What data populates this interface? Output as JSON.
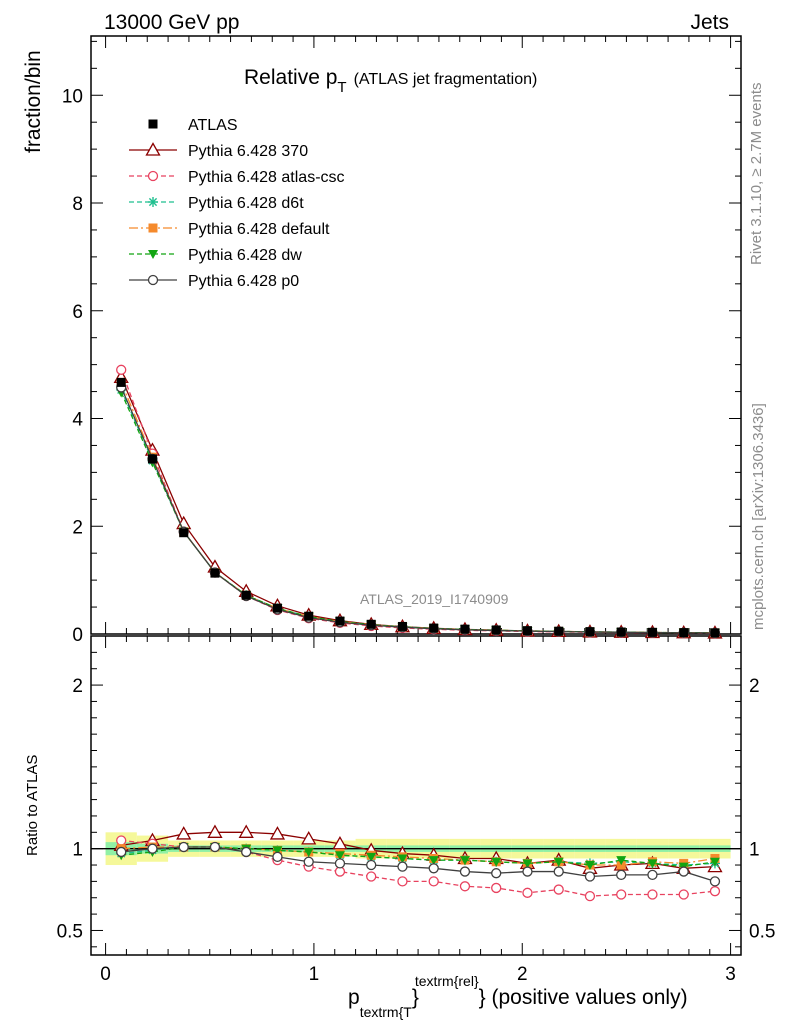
{
  "header": {
    "left": "13000 GeV pp",
    "right": "Jets"
  },
  "side_labels": {
    "rivet": "Rivet 3.1.10, ≥ 2.7M events",
    "mcplots": "mcplots.cern.ch [arXiv:1306.3436]"
  },
  "chart_data": {
    "type": "line",
    "title_main": "Relative p",
    "title_sub": "T",
    "title_rest": "(ATLAS jet fragmentation)",
    "watermark": "ATLAS_2019_I1740909",
    "ylabel_top": "fraction/bin",
    "ylabel_ratio": "Ratio to ATLAS",
    "xlabel_p": "p",
    "xlabel_sub": "textrm{T",
    "xlabel_brace": "}",
    "xlabel_sup": "textrm{rel}",
    "xlabel_tail": "} (positive values only)",
    "ylim_top": [
      0,
      11.1
    ],
    "ylim_ratio": [
      0.35,
      2.3
    ],
    "xlim": [
      -0.07,
      3.05
    ],
    "yticks_top": [
      "0",
      "2",
      "4",
      "6",
      "8",
      "10"
    ],
    "yticks_ratio": [
      "0.5",
      "1",
      "2"
    ],
    "xticks": [
      "0",
      "1",
      "2",
      "3"
    ],
    "x": [
      0.075,
      0.225,
      0.375,
      0.525,
      0.675,
      0.825,
      0.975,
      1.125,
      1.275,
      1.425,
      1.575,
      1.725,
      1.875,
      2.025,
      2.175,
      2.325,
      2.475,
      2.625,
      2.775,
      2.925
    ],
    "data_values": [
      4.67,
      3.25,
      1.88,
      1.13,
      0.72,
      0.48,
      0.33,
      0.24,
      0.18,
      0.14,
      0.11,
      0.09,
      0.075,
      0.062,
      0.052,
      0.044,
      0.037,
      0.031,
      0.026,
      0.022
    ],
    "band_outer": [
      0.1,
      0.08,
      0.05,
      0.05,
      0.05,
      0.05,
      0.05,
      0.05,
      0.06,
      0.06,
      0.06,
      0.06,
      0.06,
      0.06,
      0.06,
      0.06,
      0.06,
      0.06,
      0.06,
      0.06
    ],
    "band_inner": [
      0.04,
      0.03,
      0.02,
      0.02,
      0.02,
      0.02,
      0.02,
      0.02,
      0.02,
      0.02,
      0.02,
      0.02,
      0.02,
      0.02,
      0.02,
      0.02,
      0.02,
      0.02,
      0.02,
      0.02
    ],
    "data_series": {
      "name": "ATLAS",
      "color": "#000000",
      "marker": "square"
    },
    "series": [
      {
        "name": "Pythia 6.428 370",
        "color": "#8b0000",
        "dash": "",
        "marker": "triangle-open",
        "ratio": [
          1.02,
          1.05,
          1.09,
          1.1,
          1.1,
          1.09,
          1.06,
          1.03,
          0.99,
          0.97,
          0.96,
          0.94,
          0.94,
          0.91,
          0.93,
          0.88,
          0.9,
          0.91,
          0.88,
          0.89
        ]
      },
      {
        "name": "Pythia 6.428 atlas-csc",
        "color": "#e8425f",
        "dash": "5,3",
        "marker": "circle-open",
        "ratio": [
          1.05,
          1.03,
          1.01,
          1.01,
          0.98,
          0.93,
          0.89,
          0.86,
          0.83,
          0.8,
          0.8,
          0.77,
          0.76,
          0.73,
          0.75,
          0.71,
          0.72,
          0.72,
          0.72,
          0.74
        ]
      },
      {
        "name": "Pythia 6.428 d6t",
        "color": "#1fbf8f",
        "dash": "5,3",
        "marker": "star",
        "ratio": [
          0.97,
          0.99,
          1.01,
          1.01,
          1.0,
          0.99,
          0.98,
          0.96,
          0.95,
          0.94,
          0.93,
          0.93,
          0.92,
          0.91,
          0.92,
          0.91,
          0.92,
          0.91,
          0.9,
          0.91
        ]
      },
      {
        "name": "Pythia 6.428 default",
        "color": "#f58a2c",
        "dash": "9,3,2,3",
        "marker": "square",
        "ratio": [
          1.0,
          1.01,
          1.01,
          1.01,
          1.0,
          0.99,
          0.98,
          0.97,
          0.96,
          0.95,
          0.94,
          0.93,
          0.92,
          0.91,
          0.92,
          0.9,
          0.9,
          0.92,
          0.91,
          0.94
        ]
      },
      {
        "name": "Pythia 6.428 dw",
        "color": "#12a512",
        "dash": "5,3",
        "marker": "triangle-down",
        "ratio": [
          0.96,
          0.98,
          1.01,
          1.01,
          1.0,
          0.99,
          0.98,
          0.96,
          0.95,
          0.94,
          0.93,
          0.93,
          0.92,
          0.91,
          0.92,
          0.9,
          0.93,
          0.91,
          0.89,
          0.92
        ]
      },
      {
        "name": "Pythia 6.428 p0",
        "color": "#404040",
        "dash": "",
        "marker": "circle-open",
        "ratio": [
          0.98,
          1.0,
          1.01,
          1.01,
          0.98,
          0.95,
          0.92,
          0.91,
          0.9,
          0.89,
          0.88,
          0.86,
          0.85,
          0.86,
          0.86,
          0.83,
          0.84,
          0.84,
          0.86,
          0.8
        ]
      }
    ]
  }
}
